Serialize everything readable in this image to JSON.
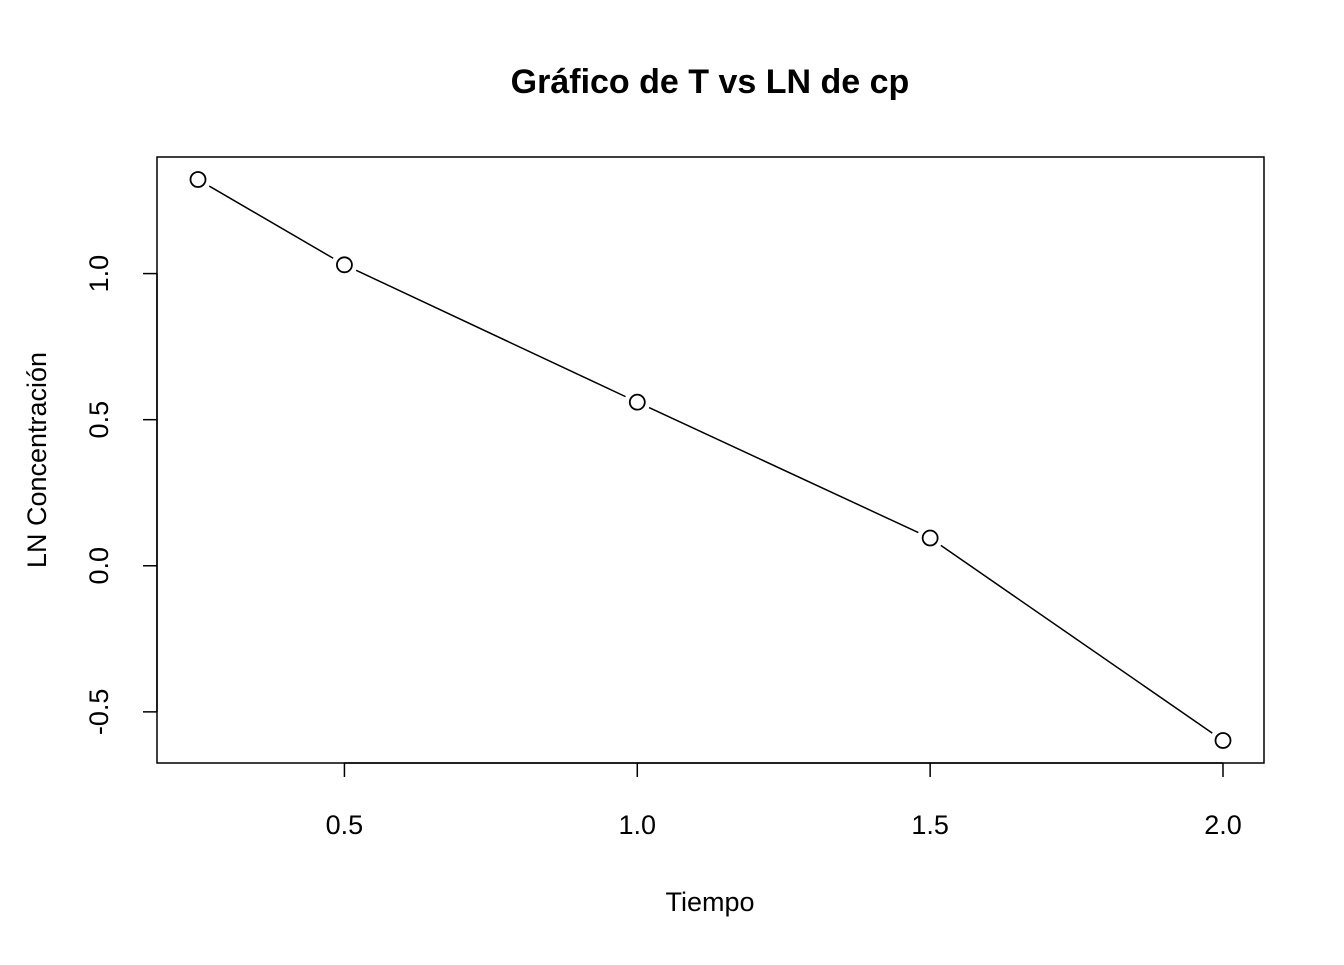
{
  "chart_data": {
    "type": "line",
    "title": "Gráfico de T vs LN de cp",
    "xlabel": "Tiempo",
    "ylabel": "LN Concentración",
    "x": [
      0.25,
      0.5,
      1.0,
      1.5,
      2.0
    ],
    "series": [
      {
        "values": [
          1.322,
          1.03,
          0.56,
          0.095,
          -0.598
        ]
      }
    ],
    "xlim": [
      0.18,
      2.07
    ],
    "ylim": [
      -0.675,
      1.399
    ],
    "xticks": [
      "0.5",
      "1.0",
      "1.5",
      "2.0"
    ],
    "yticks": [
      "-0.5",
      "0.0",
      "0.5",
      "1.0"
    ],
    "marker": "open-circle",
    "line_color": "#000000",
    "grid": false,
    "legend": "none"
  }
}
